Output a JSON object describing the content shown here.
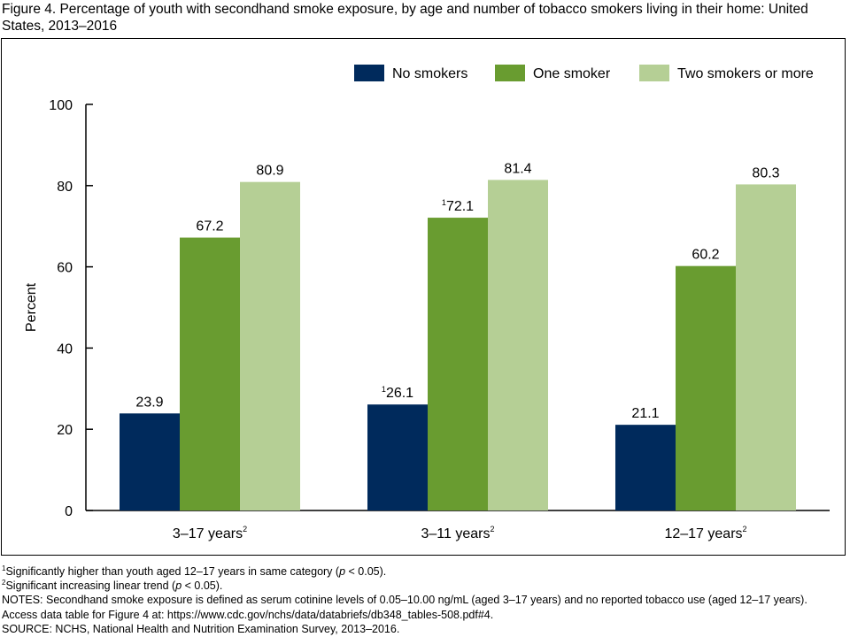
{
  "figure_title": "Figure 4. Percentage of youth with secondhand smoke exposure, by age and number of tobacco smokers living in their home: United States, 2013–2016",
  "chart_data": {
    "type": "bar",
    "title": "",
    "xlabel": "",
    "ylabel": "Percent",
    "ylim": [
      0,
      100
    ],
    "yticks": [
      0,
      20,
      40,
      60,
      80,
      100
    ],
    "grid": false,
    "legend_position": "top-right",
    "categories": [
      "3–17 years",
      "3–11 years",
      "12–17 years"
    ],
    "category_superscripts": [
      "2",
      "2",
      "2"
    ],
    "series": [
      {
        "name": "No smokers",
        "color": "#002a5c",
        "values": [
          23.9,
          26.1,
          21.1
        ],
        "labels": [
          "23.9",
          "26.1",
          "21.1"
        ],
        "label_superscripts": [
          "",
          "1",
          ""
        ]
      },
      {
        "name": "One smoker",
        "color": "#699c30",
        "values": [
          67.2,
          72.1,
          60.2
        ],
        "labels": [
          "67.2",
          "72.1",
          "60.2"
        ],
        "label_superscripts": [
          "",
          "1",
          ""
        ]
      },
      {
        "name": "Two smokers or more",
        "color": "#b5cf95",
        "values": [
          80.9,
          81.4,
          80.3
        ],
        "labels": [
          "80.9",
          "81.4",
          "80.3"
        ],
        "label_superscripts": [
          "",
          "",
          ""
        ]
      }
    ]
  },
  "footnotes": {
    "note1": {
      "marker": "1",
      "before": "Significantly higher than youth aged 12–17 years in same category (",
      "italic": "p",
      "after": " < 0.05)."
    },
    "note2": {
      "marker": "2",
      "before": "Significant increasing linear trend (",
      "italic": "p",
      "after": " < 0.05)."
    },
    "notes": "NOTES: Secondhand smoke exposure is defined as serum cotinine levels of 0.05–10.00 ng/mL (aged 3–17 years) and no reported tobacco use (aged 12–17 years). Access data table for Figure 4 at: https://www.cdc.gov/nchs/data/databriefs/db348_tables-508.pdf#4.",
    "source": "SOURCE: NCHS, National Health and Nutrition Examination Survey, 2013–2016."
  }
}
